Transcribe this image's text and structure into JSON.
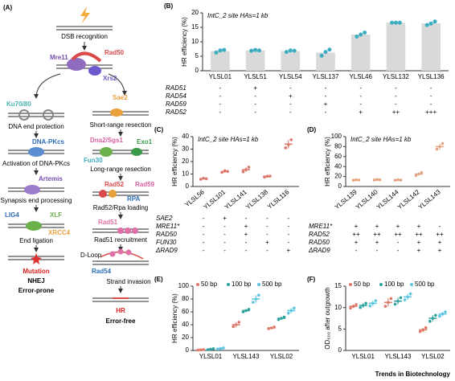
{
  "figure": {
    "footer": "Trends in Biotechnology"
  },
  "panel_a": {
    "label": "(A)",
    "dsb": "DSB recognition",
    "mre11": "Mre11",
    "rad50": "Rad50",
    "xrs2": "Xrs2",
    "ku": "Ku70/80",
    "end_protection": "DNA end protection",
    "dnapkcs": "DNA-PKcs",
    "activation": "Activation of DNA-PKcs",
    "artemis": "Artemis",
    "synapsis": "Synapsis end processing",
    "lig4": "LIG4",
    "xlf": "XLF",
    "xrcc4": "XRCC4",
    "ligation": "End ligation",
    "mutation": "Mutation",
    "nhej": "NHEJ",
    "error_prone": "Error-prone",
    "sae2": "Sae2",
    "short_range": "Short-range resection",
    "dna2": "Dna2/Sgs1",
    "exo1": "Exo1",
    "fun30": "Fun30",
    "long_range": "Long-range resection",
    "rad52": "Rad52",
    "rad59": "Rad59",
    "rpa": "RPA",
    "loading": "Rad52/Rpa loading",
    "rad51": "Rad51",
    "recruitment": "Rad51 recruitment",
    "dloop": "D-Loop",
    "rad54": "Rad54",
    "invasion": "Strand invasion",
    "hr": "HR",
    "error_free": "Error-free"
  },
  "chart_data": [
    {
      "type": "bar",
      "panel_label": "(B)",
      "annotation": "IntC_2 site    HAs=1 kb",
      "y_label": "HR efficiency (%)",
      "color": "#d9d9d9",
      "point_color": "#3aaec0",
      "categories": [
        "YLSL01",
        "YLSL51",
        "YLSL54",
        "YLSL137",
        "YLSL46",
        "YLSL132",
        "YLSL136"
      ],
      "values": [
        6.8,
        7.0,
        6.8,
        6.3,
        12.5,
        16.6,
        16.4
      ],
      "points": [
        [
          6.3,
          7.0,
          7.2
        ],
        [
          6.9,
          7.2,
          7.0
        ],
        [
          6.5,
          7.0,
          6.9
        ],
        [
          5.2,
          6.5,
          7.3
        ],
        [
          11.8,
          12.5,
          13.2
        ],
        [
          16.6,
          16.6,
          16.6
        ],
        [
          15.8,
          16.3,
          17.0
        ]
      ],
      "ylim": [
        0,
        20
      ],
      "yticks": [
        0,
        5,
        10,
        15,
        20
      ],
      "genotype_rows": [
        {
          "label": "RAD51",
          "marks": [
            "-",
            "+",
            "-",
            "-",
            "-",
            "-",
            "-"
          ]
        },
        {
          "label": "RAD54",
          "marks": [
            "-",
            "-",
            "+",
            "-",
            "-",
            "-",
            "-"
          ]
        },
        {
          "label": "RAD59",
          "marks": [
            "-",
            "-",
            "-",
            "+",
            "-",
            "-",
            "-"
          ]
        },
        {
          "label": "RAD52",
          "marks": [
            "-",
            "-",
            "-",
            "-",
            "+",
            "++",
            "+++"
          ]
        }
      ]
    },
    {
      "type": "dot",
      "panel_label": "(C)",
      "annotation": "IntC_2 site  HAs=1 kb",
      "y_label": "HR efficiency (%)",
      "color": "#d9776b",
      "categories": [
        "YLSL56",
        "YLSL101",
        "YLSL141",
        "YLSL138",
        "YLSL116"
      ],
      "values": [
        6.2,
        12,
        13.5,
        8,
        34
      ],
      "errors": [
        0.6,
        1,
        2,
        0.5,
        3.5
      ],
      "points": [
        [
          5.8,
          6.6,
          6.2
        ],
        [
          11.3,
          12.6,
          12.1
        ],
        [
          11.8,
          13.5,
          15.5
        ],
        [
          7.6,
          8.2,
          8.3
        ],
        [
          31,
          33.5,
          37.5
        ]
      ],
      "ylim": [
        0,
        40
      ],
      "yticks": [
        0,
        10,
        20,
        30,
        40
      ],
      "genotype_rows": [
        {
          "label": "SAE2",
          "marks": [
            "-",
            "+",
            "-",
            "-",
            "-"
          ]
        },
        {
          "label": "MRE11*",
          "marks": [
            "-",
            "-",
            "+",
            "-",
            "-"
          ]
        },
        {
          "label": "RAD50",
          "marks": [
            "-",
            "-",
            "+",
            "-",
            "-"
          ]
        },
        {
          "label": "FUN30",
          "marks": [
            "-",
            "-",
            "-",
            "+",
            "-"
          ]
        },
        {
          "label": "ΔRAD9",
          "marks": [
            "-",
            "-",
            "-",
            "-",
            "+"
          ]
        }
      ]
    },
    {
      "type": "dot",
      "panel_label": "(D)",
      "annotation": "IntC_2 site  HAs=1 kb",
      "y_label": "HR efficiency (%)",
      "color": "#e3a482",
      "categories": [
        "YLSL139",
        "YLSL140",
        "YLSL144",
        "YLSL142",
        "YLSL143"
      ],
      "values": [
        13,
        13.5,
        13,
        25,
        80
      ],
      "errors": [
        1,
        1,
        1,
        3,
        6
      ],
      "points": [
        [
          12.5,
          13.5,
          13
        ],
        [
          13,
          14,
          13.5
        ],
        [
          12.5,
          13.5,
          13
        ],
        [
          22,
          25,
          28
        ],
        [
          75,
          80,
          86
        ]
      ],
      "ylim": [
        0,
        100
      ],
      "yticks": [
        0,
        20,
        40,
        60,
        80,
        100
      ],
      "genotype_rows": [
        {
          "label": "MRE11*",
          "marks": [
            "+",
            "+",
            "+",
            "+",
            "-"
          ]
        },
        {
          "label": "RAD52",
          "marks": [
            "++",
            "++",
            "++",
            "++",
            "++"
          ]
        },
        {
          "label": "RAD50",
          "marks": [
            "+",
            "+",
            "-",
            "+",
            "+"
          ]
        },
        {
          "label": "ΔRAD9",
          "marks": [
            "-",
            "-",
            "-",
            "+",
            "+"
          ]
        }
      ]
    },
    {
      "type": "grouped_dot",
      "panel_label": "(E)",
      "y_label": "HR efficiency (%)",
      "categories": [
        "YLSL01",
        "YLSL143",
        "YLSL02"
      ],
      "series": [
        {
          "name": "50 bp",
          "color": "#e0786a",
          "values": [
            1,
            40,
            35
          ],
          "errors": [
            0.5,
            4,
            1.5
          ],
          "points": [
            [
              0.6,
              1,
              1.4
            ],
            [
              37,
              40,
              44
            ],
            [
              34,
              35,
              36.5
            ]
          ]
        },
        {
          "name": "100 bp",
          "color": "#2fa39e",
          "values": [
            2,
            62,
            50
          ],
          "errors": [
            1,
            2,
            2
          ],
          "points": [
            [
              1.2,
              2,
              2.8
            ],
            [
              60,
              62,
              64
            ],
            [
              48,
              50,
              52
            ]
          ]
        },
        {
          "name": "500 bp",
          "color": "#5cc6e2",
          "values": [
            3,
            80,
            62
          ],
          "errors": [
            1,
            6,
            4
          ],
          "points": [
            [
              2.2,
              3,
              3.8
            ],
            [
              75,
              80,
              86
            ],
            [
              58,
              62,
              66
            ]
          ]
        }
      ],
      "ylim": [
        0,
        100
      ],
      "yticks": [
        0,
        20,
        40,
        60,
        80,
        100
      ]
    },
    {
      "type": "grouped_dot",
      "panel_label": "(F)",
      "y_label": "OD₆₀₀ after outgrowth",
      "categories": [
        "YLSL01",
        "YLSL143",
        "YLSL02"
      ],
      "series": [
        {
          "name": "50 bp",
          "color": "#e0786a",
          "values": [
            10.3,
            11.2,
            4.8
          ],
          "errors": [
            0.4,
            1,
            0.5
          ],
          "points": [
            [
              9.9,
              10.3,
              10.7
            ],
            [
              10.3,
              11.2,
              12.1
            ],
            [
              4.4,
              4.8,
              5.3
            ]
          ]
        },
        {
          "name": "100 bp",
          "color": "#2fa39e",
          "values": [
            10.5,
            11.5,
            7.5
          ],
          "errors": [
            0.5,
            0.8,
            0.7
          ],
          "points": [
            [
              10,
              10.5,
              11
            ],
            [
              10.8,
              11.5,
              12.3
            ],
            [
              6.8,
              7.5,
              8.2
            ]
          ]
        },
        {
          "name": "500 bp",
          "color": "#5cc6e2",
          "values": [
            11,
            12.5,
            8.5
          ],
          "errors": [
            0.6,
            0.7,
            0.5
          ],
          "points": [
            [
              10.4,
              11,
              11.6
            ],
            [
              11.8,
              12.5,
              13.2
            ],
            [
              8,
              8.5,
              9
            ]
          ]
        }
      ],
      "ylim": [
        0,
        15
      ],
      "yticks": [
        0,
        5,
        10,
        15
      ]
    }
  ]
}
